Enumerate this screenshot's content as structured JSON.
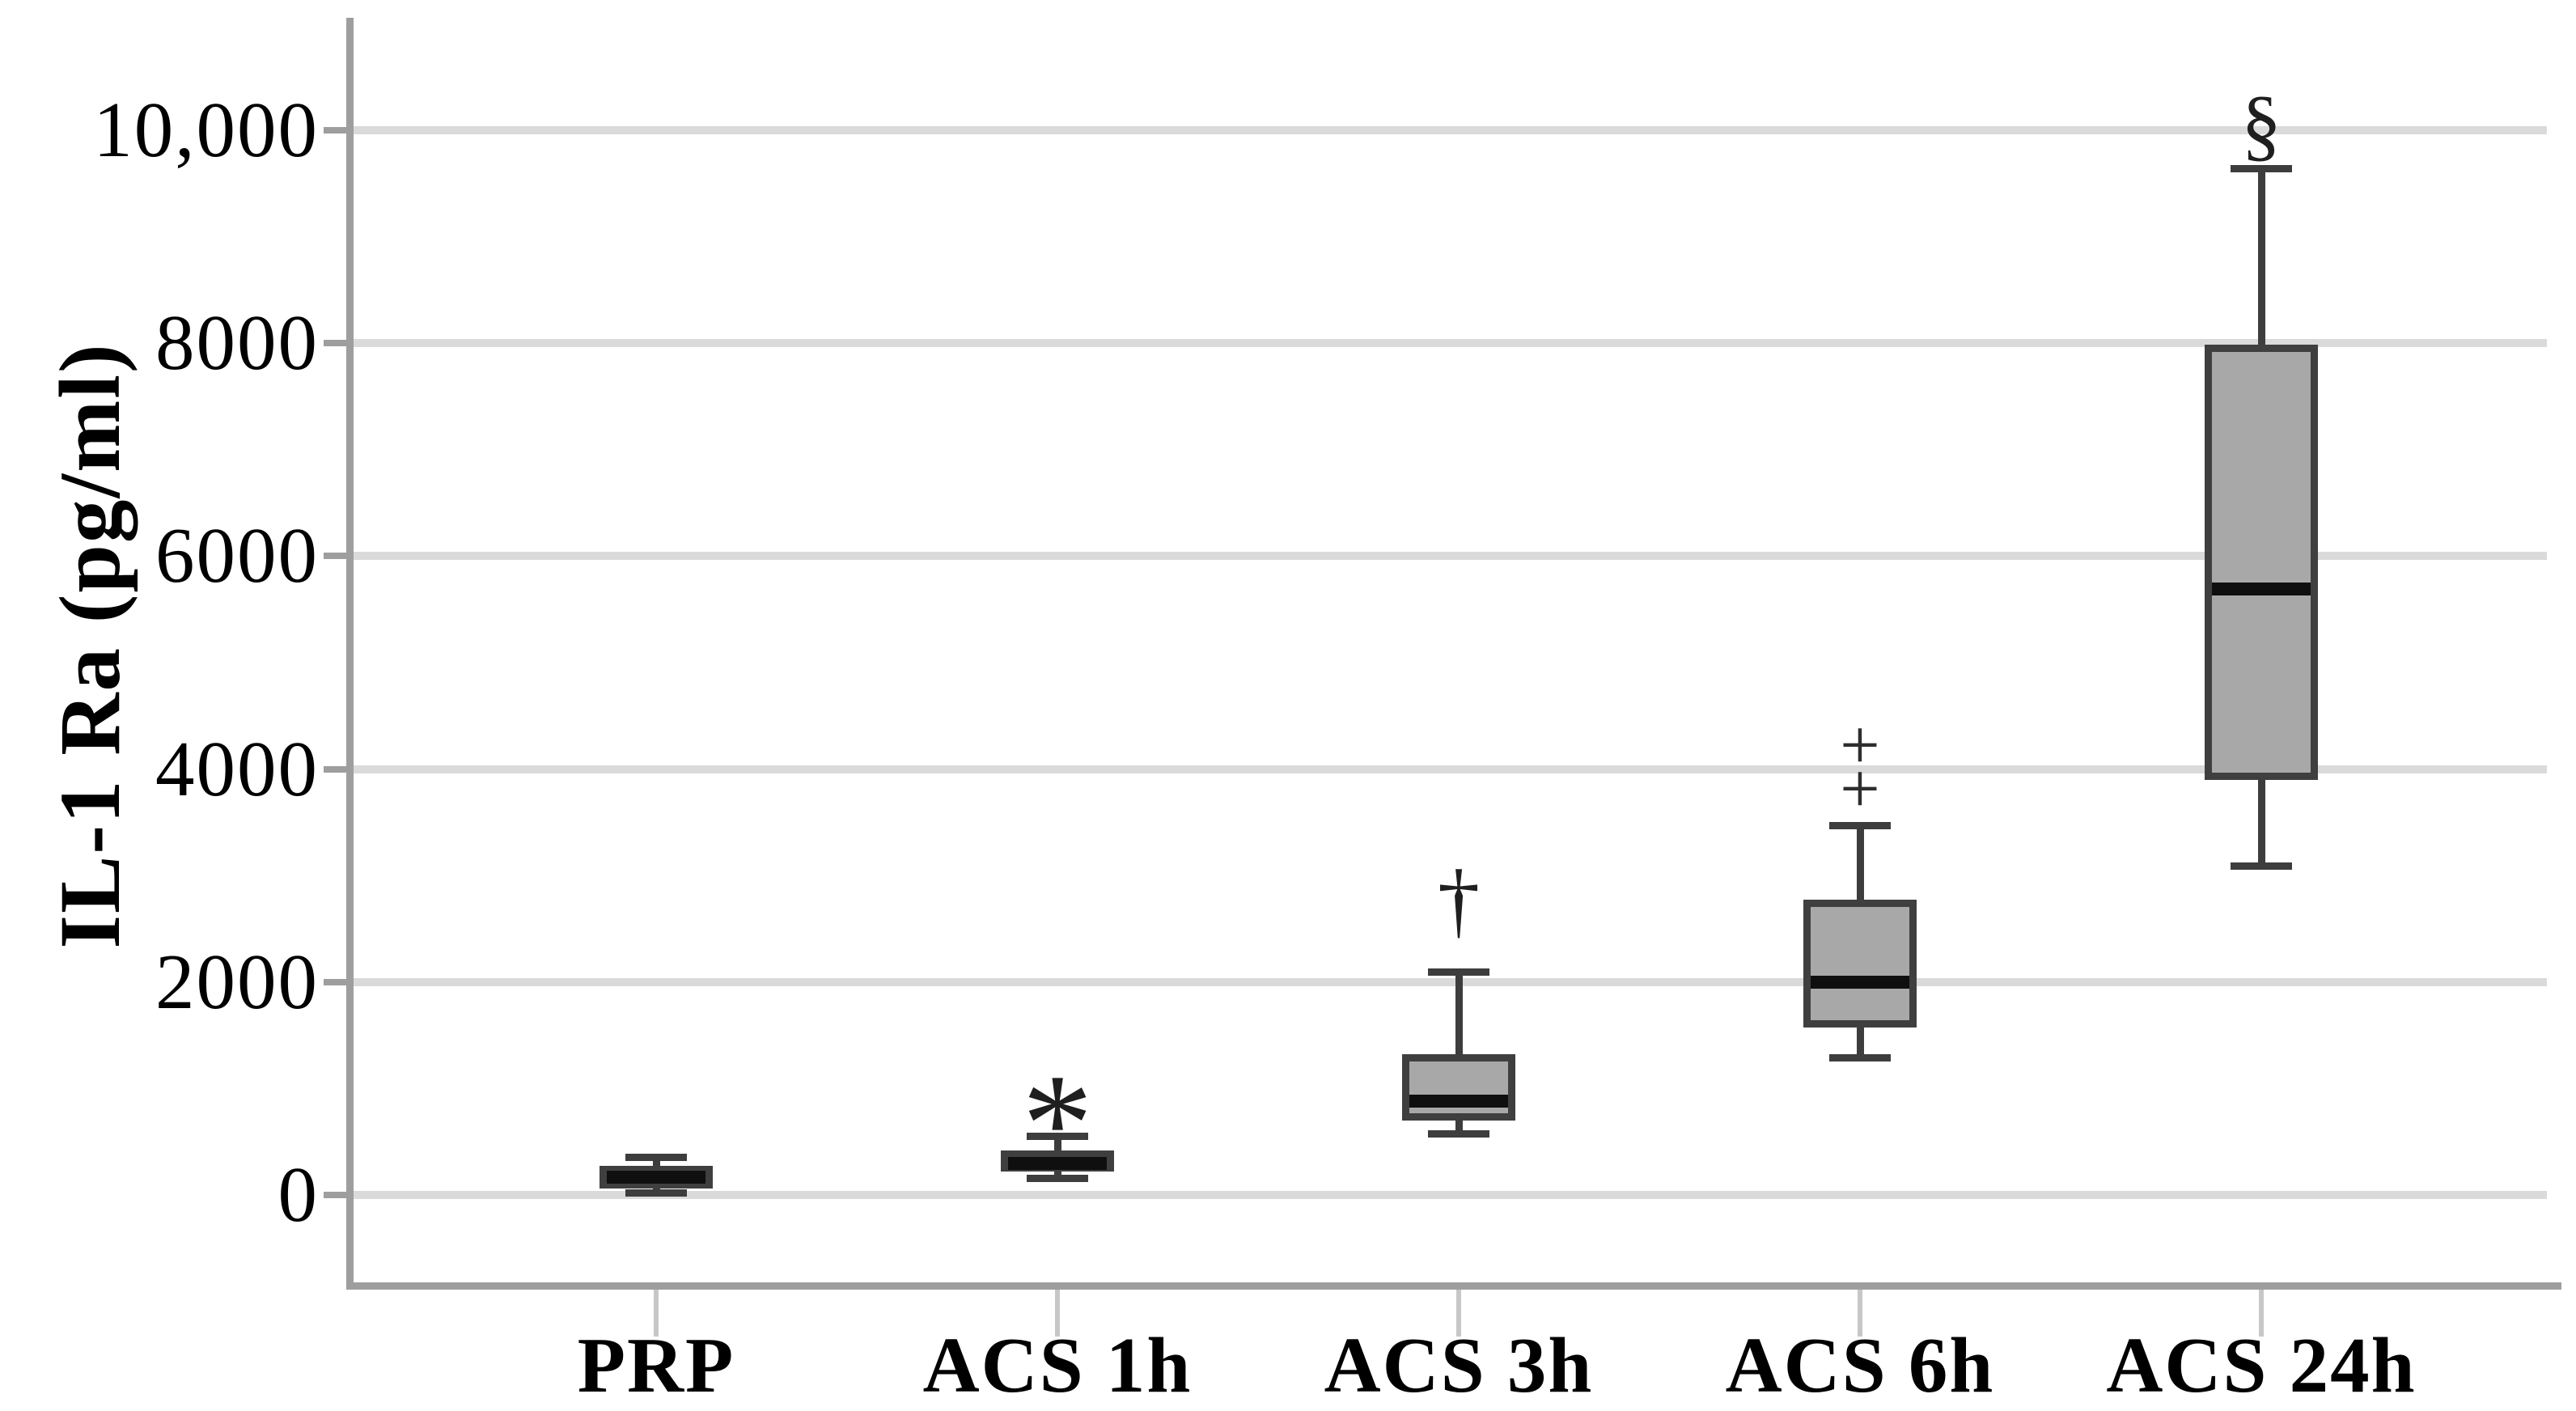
{
  "figure": {
    "background_color": "#ffffff",
    "grid_color": "#dadada",
    "axis_color": "#9e9e9e",
    "box_fill_color": "#a8a8a8",
    "box_border_color": "#3f3f3f",
    "median_color": "#0f0f0f",
    "text_color": "#000000"
  },
  "chart_data": {
    "type": "boxplot",
    "title": "",
    "xlabel": "",
    "ylabel": "IL-1 Ra (pg/ml)",
    "ylim": [
      0,
      11000
    ],
    "grid": "horizontal",
    "y_ticks": [
      {
        "value": 10000,
        "label": "10,000"
      },
      {
        "value": 8000,
        "label": "8000"
      },
      {
        "value": 6000,
        "label": "6000"
      },
      {
        "value": 4000,
        "label": "4000"
      },
      {
        "value": 2000,
        "label": "2000"
      },
      {
        "value": 0,
        "label": "0"
      }
    ],
    "categories": [
      "PRP",
      "ACS 1h",
      "ACS 3h",
      "ACS 6h",
      "ACS 24h"
    ],
    "boxes": [
      {
        "category": "PRP",
        "min": 20,
        "q1": 60,
        "median": 170,
        "q3": 270,
        "max": 360,
        "outliers": [],
        "annotation": null
      },
      {
        "category": "ACS 1h",
        "min": 160,
        "q1": 220,
        "median": 300,
        "q3": 420,
        "max": 555,
        "outliers": [],
        "annotation": {
          "glyph": "*",
          "value": 930
        }
      },
      {
        "category": "ACS 3h",
        "min": 580,
        "q1": 700,
        "median": 880,
        "q3": 1320,
        "max": 2100,
        "outliers": [],
        "annotation": {
          "glyph": "†",
          "value": 2830
        }
      },
      {
        "category": "ACS 6h",
        "min": 1290,
        "q1": 1570,
        "median": 2000,
        "q3": 2770,
        "max": 3470,
        "outliers": [
          3840,
          4250
        ],
        "annotation": null
      },
      {
        "category": "ACS 24h",
        "min": 3090,
        "q1": 3900,
        "median": 5690,
        "q3": 7990,
        "max": 9640,
        "outliers": [],
        "annotation": {
          "glyph": "§",
          "value": 10050
        }
      }
    ],
    "outlier_marker_glyph": "+",
    "legend": null
  }
}
